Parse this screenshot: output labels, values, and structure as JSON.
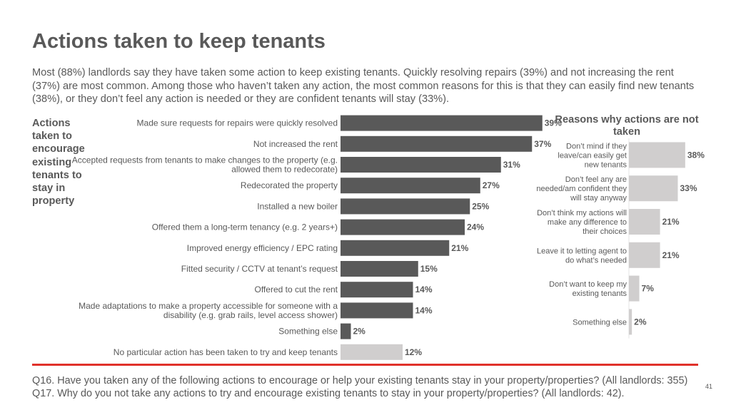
{
  "page": {
    "title": "Actions taken to keep tenants",
    "subtitle": "Most (88%) landlords say they have taken some action to keep existing tenants. Quickly resolving repairs (39%) and not increasing the rent (37%) are most common. Among those who haven’t taken any action, the most common reasons for this is that they can easily find new tenants (38%), or they don’t feel any action is needed or they are confident tenants will stay (33%).",
    "side_label": "Actions taken to encourage existing tenants to stay in property",
    "footnote": "Q16. Have you taken any of the following actions to encourage or help your existing tenants stay in your property/properties? (All landlords: 355) Q17. Why do you not take any actions to try and encourage existing tenants to stay in your property/properties? (All landlords: 42).",
    "page_number": "41"
  },
  "colors": {
    "text": "#595959",
    "dark_bar": "#595959",
    "light_bar": "#d0cece",
    "accent_line": "#e0312a"
  },
  "chart_data": [
    {
      "type": "bar",
      "orientation": "horizontal",
      "title": "",
      "categories": [
        "Made sure requests for repairs were quickly resolved",
        "Not increased the rent",
        "Accepted requests from tenants to make changes to the property (e.g. allowed them to redecorate)",
        "Redecorated the property",
        "Installed a new boiler",
        "Offered them a long-term tenancy (e.g. 2 years+)",
        "Improved energy efficiency / EPC rating",
        "Fitted security / CCTV at tenant’s request",
        "Offered to cut the rent",
        "Made adaptations to make a property accessible for someone with a disability (e.g. grab rails, level access shower)",
        "Something else",
        "No particular action has been taken to try and keep tenants"
      ],
      "category_lines": [
        [
          "Made sure requests for repairs were quickly resolved"
        ],
        [
          "Not increased the rent"
        ],
        [
          "Accepted requests from tenants to make changes to the property (e.g.",
          "allowed them to redecorate)"
        ],
        [
          "Redecorated the property"
        ],
        [
          "Installed a new boiler"
        ],
        [
          "Offered them a long-term tenancy (e.g. 2 years+)"
        ],
        [
          "Improved energy efficiency / EPC rating"
        ],
        [
          "Fitted security / CCTV at tenant’s request"
        ],
        [
          "Offered to cut the rent"
        ],
        [
          "Made adaptations to make a property accessible for someone with a",
          "disability (e.g. grab rails, level access shower)"
        ],
        [
          "Something else"
        ],
        [
          "No particular action has been taken to try and keep tenants"
        ]
      ],
      "values": [
        39,
        37,
        31,
        27,
        25,
        24,
        21,
        15,
        14,
        14,
        2,
        12
      ],
      "labels": [
        "39%",
        "37%",
        "31%",
        "27%",
        "25%",
        "24%",
        "21%",
        "15%",
        "14%",
        "14%",
        "2%",
        "12%"
      ],
      "highlight_last": true,
      "xlim": [
        0,
        40
      ],
      "grid": false
    },
    {
      "type": "bar",
      "orientation": "horizontal",
      "title": "Reasons why actions are not taken",
      "title_lines": [
        "Reasons why actions are not",
        "taken"
      ],
      "categories": [
        "Don’t mind if they leave/can easily get new tenants",
        "Don’t feel any are needed/am confident they will stay anyway",
        "Don’t think my actions will make any difference to their choices",
        "Leave it to letting agent to do what’s needed",
        "Don’t want to keep my existing tenants",
        "Something else"
      ],
      "category_lines": [
        [
          "Don’t mind if they",
          "leave/can easily get",
          "new tenants"
        ],
        [
          "Don’t feel any are",
          "needed/am confident they",
          "will stay anyway"
        ],
        [
          "Don’t think my actions will",
          "make any difference to",
          "their choices"
        ],
        [
          "Leave it to letting agent to",
          "do what’s needed"
        ],
        [
          "Don’t want to keep my",
          "existing tenants"
        ],
        [
          "Something else"
        ]
      ],
      "values": [
        38,
        33,
        21,
        21,
        7,
        2
      ],
      "labels": [
        "38%",
        "33%",
        "21%",
        "21%",
        "7%",
        "2%"
      ],
      "xlim": [
        0,
        40
      ],
      "grid": false
    }
  ]
}
